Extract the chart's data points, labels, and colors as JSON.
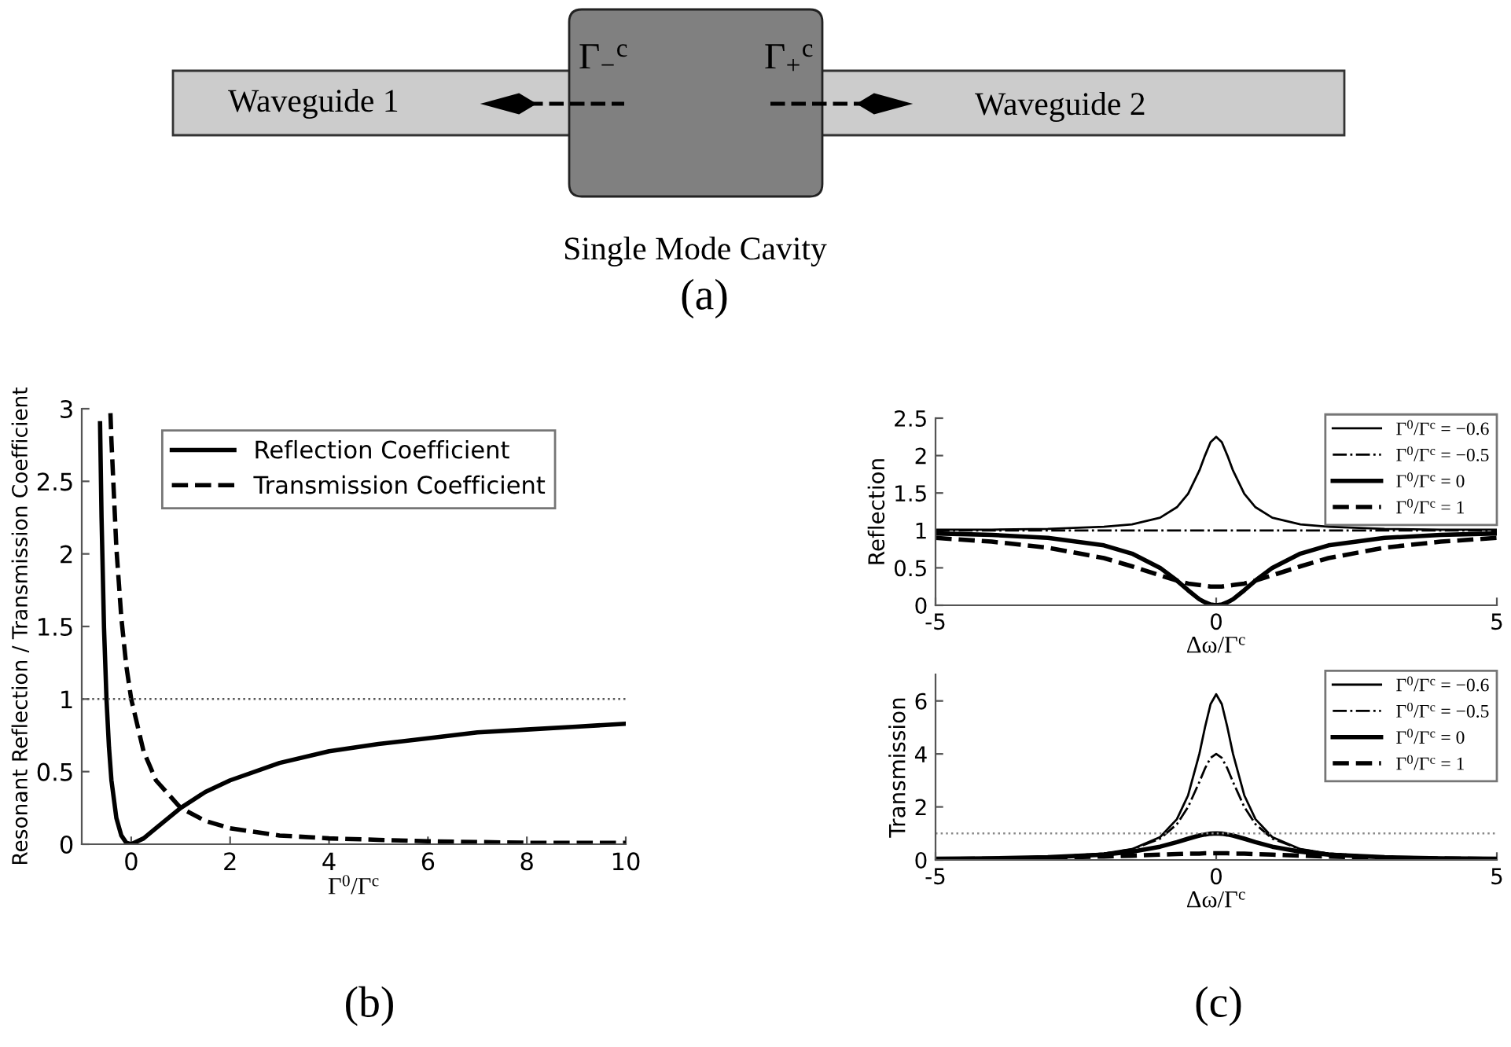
{
  "chart_data": [
    {
      "type": "other",
      "annotations": [
        "Waveguide 1",
        "Γ$_{−}$$^{c}$",
        "Γ$_{+}$$^{c}$",
        "Waveguide 2",
        "Single Mode Cavity",
        "(a)"
      ]
    },
    {
      "type": "line",
      "xlabel": "Γ$^{0}$/Γ$^{c}$",
      "ylabel": "Resonant Reflection / Transmission Coefficient",
      "annotations": [
        "(b)"
      ],
      "xlim": [
        -1,
        10
      ],
      "xticks": [
        0,
        2,
        4,
        6,
        8,
        10
      ],
      "ylim": [
        0,
        3
      ],
      "yticks": [
        0,
        0.5,
        1,
        1.5,
        2,
        2.5,
        3
      ],
      "grid": false,
      "legend": "top right",
      "ref_lines": [
        {
          "axis": "y",
          "value": 1,
          "color": "#555555",
          "line_style": "dotted"
        }
      ],
      "series": [
        {
          "name": "Reflection Coefficient",
          "color": "#000000",
          "line_style": "solid",
          "x": [
            -0.63,
            -0.6,
            -0.55,
            -0.5,
            -0.45,
            -0.4,
            -0.3,
            -0.2,
            -0.1,
            0,
            0.25,
            0.5,
            1,
            1.5,
            2,
            3,
            4,
            5,
            6,
            7,
            8,
            9,
            10
          ],
          "values": [
            2.9,
            2.25,
            1.49,
            1.0,
            0.67,
            0.44,
            0.18,
            0.06,
            0.01,
            0,
            0.04,
            0.11,
            0.25,
            0.36,
            0.44,
            0.56,
            0.64,
            0.69,
            0.73,
            0.77,
            0.79,
            0.81,
            0.83
          ]
        },
        {
          "name": "Transmission Coefficient",
          "color": "#000000",
          "line_style": "dashed",
          "x": [
            -0.42,
            -0.4,
            -0.3,
            -0.2,
            -0.1,
            0,
            0.25,
            0.5,
            1,
            1.5,
            2,
            3,
            4,
            5,
            6,
            8,
            10
          ],
          "values": [
            2.97,
            2.78,
            2.04,
            1.56,
            1.23,
            1.0,
            0.64,
            0.44,
            0.25,
            0.16,
            0.11,
            0.06,
            0.04,
            0.03,
            0.02,
            0.01,
            0.01
          ]
        }
      ]
    },
    {
      "type": "line",
      "xlabel": "Δω/Γ$^{c}$",
      "ylabel": "Reflection",
      "x": [
        -5,
        -4,
        -3,
        -2,
        -1.5,
        -1,
        -0.7,
        -0.5,
        -0.3,
        -0.2,
        -0.1,
        0,
        0.1,
        0.2,
        0.3,
        0.5,
        0.7,
        1,
        1.5,
        2,
        3,
        4,
        5
      ],
      "xlim": [
        -5,
        5
      ],
      "xticks": [
        -5,
        0,
        5
      ],
      "ylim": [
        0,
        2.5
      ],
      "yticks": [
        0,
        0.5,
        1,
        1.5,
        2,
        2.5
      ],
      "grid": false,
      "legend": "top right",
      "series": [
        {
          "name": "Γ$^{0}$/Γ$^{c}$ = −0.6",
          "color": "#000000",
          "line_style": "solid",
          "values": [
            1.01,
            1.01,
            1.02,
            1.05,
            1.08,
            1.17,
            1.31,
            1.49,
            1.8,
            2.0,
            2.18,
            2.25,
            2.18,
            2.0,
            1.8,
            1.49,
            1.31,
            1.17,
            1.08,
            1.05,
            1.02,
            1.01,
            1.01
          ]
        },
        {
          "name": "Γ$^{0}$/Γ$^{c}$ = −0.5",
          "color": "#000000",
          "line_style": "dashdot",
          "values": [
            1,
            1,
            1,
            1,
            1,
            1,
            1,
            1,
            1,
            1,
            1,
            1,
            1,
            1,
            1,
            1,
            1,
            1,
            1,
            1,
            1,
            1,
            1
          ]
        },
        {
          "name": "Γ$^{0}$/Γ$^{c}$ = 0",
          "color": "#000000",
          "line_style": "solid",
          "values": [
            0.96,
            0.94,
            0.9,
            0.8,
            0.69,
            0.5,
            0.33,
            0.2,
            0.08,
            0.04,
            0.01,
            0,
            0.01,
            0.04,
            0.08,
            0.2,
            0.33,
            0.5,
            0.69,
            0.8,
            0.9,
            0.94,
            0.96
          ]
        },
        {
          "name": "Γ$^{0}$/Γ$^{c}$ = 1",
          "color": "#000000",
          "line_style": "dashed",
          "values": [
            0.9,
            0.85,
            0.77,
            0.63,
            0.52,
            0.4,
            0.33,
            0.29,
            0.27,
            0.26,
            0.25,
            0.25,
            0.25,
            0.26,
            0.27,
            0.29,
            0.33,
            0.4,
            0.52,
            0.63,
            0.77,
            0.85,
            0.9
          ]
        }
      ]
    },
    {
      "type": "line",
      "xlabel": "Δω/Γ$^{c}$",
      "ylabel": "Transmission",
      "annotations": [
        "(c)"
      ],
      "x": [
        -5,
        -4,
        -3,
        -2,
        -1.5,
        -1,
        -0.7,
        -0.5,
        -0.3,
        -0.2,
        -0.1,
        0,
        0.1,
        0.2,
        0.3,
        0.5,
        0.7,
        1,
        1.5,
        2,
        3,
        4,
        5
      ],
      "xlim": [
        -5,
        5
      ],
      "xticks": [
        -5,
        0,
        5
      ],
      "ylim": [
        0,
        7
      ],
      "yticks": [
        0,
        2,
        4,
        6
      ],
      "grid": false,
      "legend": "top right",
      "ref_lines": [
        {
          "axis": "y",
          "value": 1,
          "color": "#888888",
          "line_style": "dotted"
        }
      ],
      "series": [
        {
          "name": "Γ$^{0}$/Γ$^{c}$ = −0.6",
          "color": "#000000",
          "line_style": "solid",
          "values": [
            0.04,
            0.06,
            0.11,
            0.24,
            0.41,
            0.86,
            1.54,
            2.44,
            4.0,
            5.0,
            5.88,
            6.25,
            5.88,
            5.0,
            4.0,
            2.44,
            1.54,
            0.86,
            0.41,
            0.24,
            0.11,
            0.06,
            0.04
          ]
        },
        {
          "name": "Γ$^{0}$/Γ$^{c}$ = −0.5",
          "color": "#000000",
          "line_style": "dashdot",
          "values": [
            0.04,
            0.06,
            0.11,
            0.24,
            0.4,
            0.8,
            1.35,
            2.0,
            2.94,
            3.45,
            3.85,
            4.0,
            3.85,
            3.45,
            2.94,
            2.0,
            1.35,
            0.8,
            0.4,
            0.24,
            0.11,
            0.06,
            0.04
          ]
        },
        {
          "name": "Γ$^{0}$/Γ$^{c}$ = 0",
          "color": "#000000",
          "line_style": "solid",
          "values": [
            0.04,
            0.06,
            0.1,
            0.2,
            0.31,
            0.5,
            0.67,
            0.8,
            0.92,
            0.96,
            0.99,
            1.0,
            0.99,
            0.96,
            0.92,
            0.8,
            0.67,
            0.5,
            0.31,
            0.2,
            0.1,
            0.06,
            0.04
          ]
        },
        {
          "name": "Γ$^{0}$/Γ$^{c}$ = 1",
          "color": "#000000",
          "line_style": "dashed",
          "values": [
            0.03,
            0.05,
            0.08,
            0.13,
            0.16,
            0.2,
            0.22,
            0.24,
            0.24,
            0.25,
            0.25,
            0.25,
            0.25,
            0.25,
            0.24,
            0.24,
            0.22,
            0.2,
            0.16,
            0.13,
            0.08,
            0.05,
            0.03
          ]
        }
      ]
    }
  ]
}
